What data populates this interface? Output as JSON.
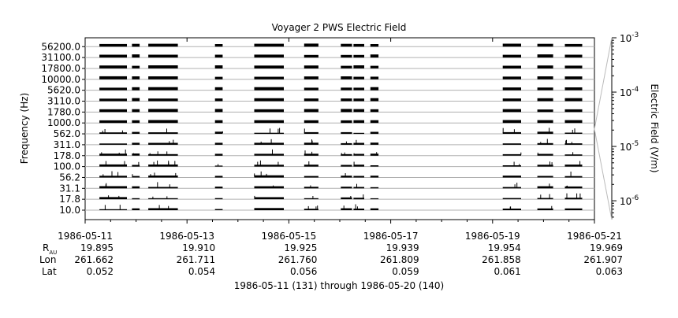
{
  "chart_data": {
    "type": "heatmap",
    "title": "Voyager 2 PWS Electric Field",
    "ylabel": "Frequency (Hz)",
    "colorbar_label": "Electric Field (V/m)",
    "colorbar_scale": "log",
    "colorbar_range": [
      4.5e-07,
      0.001
    ],
    "colorbar_ticks": [
      {
        "value": 0.001,
        "base": "10",
        "exp": "-3"
      },
      {
        "value": 0.0001,
        "base": "10",
        "exp": "-4"
      },
      {
        "value": 1e-05,
        "base": "10",
        "exp": "-5"
      },
      {
        "value": 1e-06,
        "base": "10",
        "exp": "-6"
      }
    ],
    "channels": [
      "10.0",
      "17.8",
      "31.1",
      "56.2",
      "100.0",
      "178.0",
      "311.0",
      "562.0",
      "1000.0",
      "1780.0",
      "3110.0",
      "5620.0",
      "10000.0",
      "17800.0",
      "31100.0",
      "56200.0"
    ],
    "x_range": [
      "1986-05-11",
      "1986-05-21"
    ],
    "x_ticks": [
      {
        "label": "1986-05-11",
        "day": 0,
        "rau": "19.895",
        "lon": "261.662",
        "lat": "0.052"
      },
      {
        "label": "1986-05-13",
        "day": 2,
        "rau": "19.910",
        "lon": "261.711",
        "lat": "0.054"
      },
      {
        "label": "1986-05-15",
        "day": 4,
        "rau": "19.925",
        "lon": "261.760",
        "lat": "0.056"
      },
      {
        "label": "1986-05-17",
        "day": 6,
        "rau": "19.939",
        "lon": "261.809",
        "lat": "0.059"
      },
      {
        "label": "1986-05-19",
        "day": 8,
        "rau": "19.954",
        "lon": "261.858",
        "lat": "0.061"
      },
      {
        "label": "1986-05-21",
        "day": 10,
        "rau": "19.969",
        "lon": "261.907",
        "lat": "0.063"
      }
    ],
    "ephemeris_labels": {
      "rau_main": "R",
      "rau_sub": "AU",
      "lon": "Lon",
      "lat": "Lat"
    },
    "data_segments": [
      {
        "start": 0.28,
        "end": 0.82
      },
      {
        "start": 0.92,
        "end": 1.07
      },
      {
        "start": 1.24,
        "end": 1.82
      },
      {
        "start": 2.55,
        "end": 2.7
      },
      {
        "start": 3.32,
        "end": 3.9
      },
      {
        "start": 4.3,
        "end": 4.58
      },
      {
        "start": 5.02,
        "end": 5.24
      },
      {
        "start": 5.27,
        "end": 5.48
      },
      {
        "start": 5.6,
        "end": 5.76
      },
      {
        "start": 8.2,
        "end": 8.56
      },
      {
        "start": 8.88,
        "end": 9.19
      },
      {
        "start": 9.42,
        "end": 9.76
      }
    ],
    "footer": "1986-05-11 (131) through 1986-05-20 (140)"
  }
}
